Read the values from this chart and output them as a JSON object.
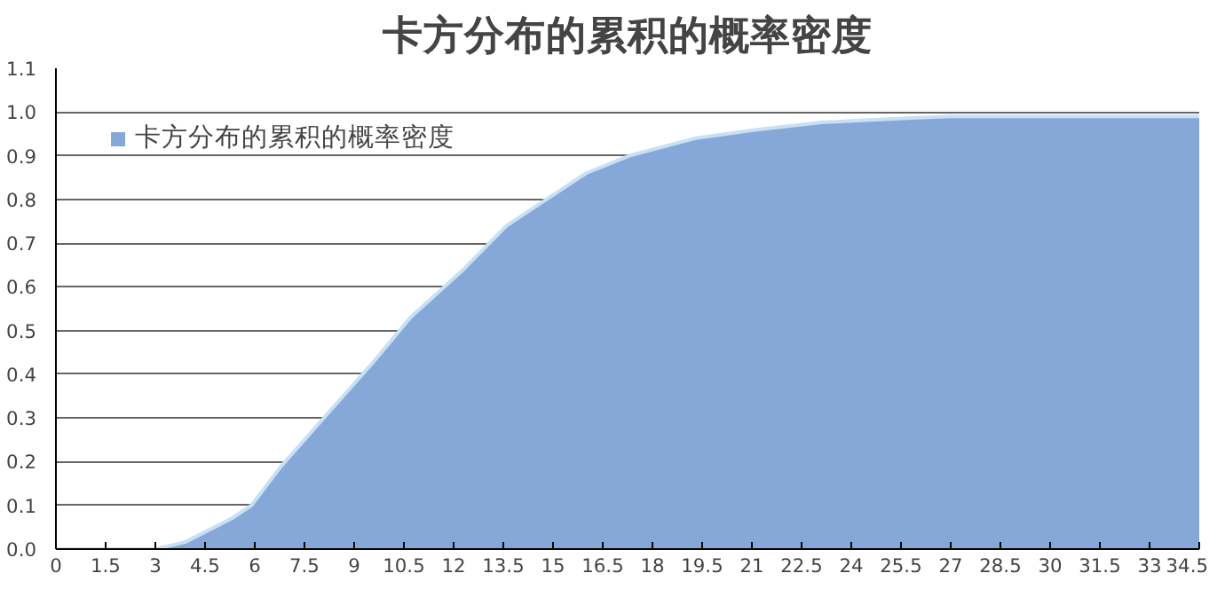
{
  "chart_data": {
    "type": "area",
    "title": "卡方分布的累积的概率密度",
    "x": [
      0,
      1.5,
      3,
      3.9,
      5.3,
      5.9,
      6.8,
      8.2,
      9.6,
      10.7,
      12.3,
      13.6,
      15,
      16,
      17.3,
      19.3,
      21.2,
      23.1,
      25.1,
      27,
      30,
      34.5
    ],
    "series": [
      {
        "name": "卡方分布的累积的概率密度",
        "color": "#86a8d8",
        "values": [
          0,
          0,
          0,
          0.016,
          0.07,
          0.1,
          0.19,
          0.31,
          0.43,
          0.53,
          0.64,
          0.74,
          0.81,
          0.86,
          0.9,
          0.94,
          0.96,
          0.976,
          0.984,
          0.99,
          0.99,
          0.99
        ]
      }
    ],
    "xlim": [
      0,
      34.5
    ],
    "xticks": [
      0,
      1.5,
      3,
      4.5,
      6,
      7.5,
      9,
      10.5,
      12,
      13.5,
      15,
      16.5,
      18,
      19.5,
      21,
      22.5,
      24,
      25.5,
      27,
      28.5,
      30,
      31.5,
      33,
      34.5
    ],
    "ylim": [
      0,
      1.1
    ],
    "yticks": [
      {
        "value": 0,
        "label": "0.0"
      },
      {
        "value": 0.1,
        "label": "0.1"
      },
      {
        "value": 0.2,
        "label": "0.2"
      },
      {
        "value": 0.3,
        "label": "0.3"
      },
      {
        "value": 0.4,
        "label": "0.4"
      },
      {
        "value": 0.5,
        "label": "0.5"
      },
      {
        "value": 0.6,
        "label": "0.6"
      },
      {
        "value": 0.7,
        "label": "0.7"
      },
      {
        "value": 0.8,
        "label": "0.8"
      },
      {
        "value": 0.9,
        "label": "0.9"
      },
      {
        "value": 1.0,
        "label": "1.0"
      },
      {
        "value": 1.1,
        "label": "1.1"
      }
    ],
    "grid": "y",
    "legend": "top left"
  }
}
